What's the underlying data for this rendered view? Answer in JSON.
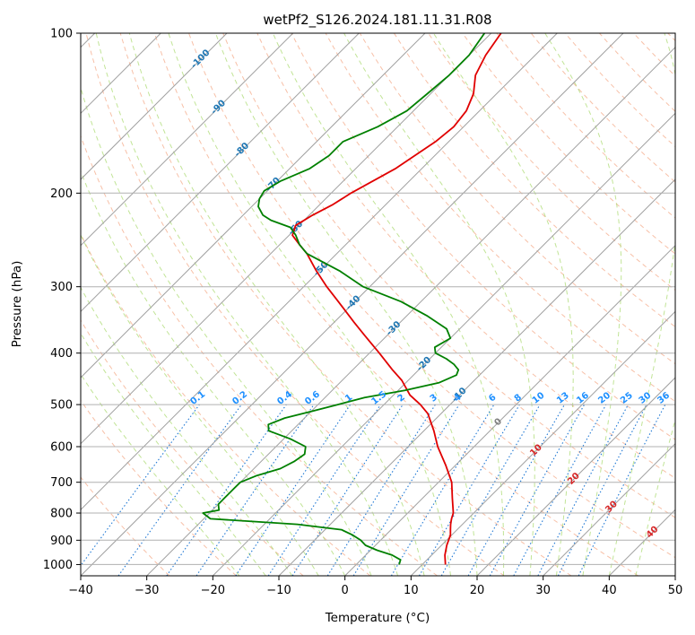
{
  "chart_data": {
    "type": "skew-t",
    "title": "wetPf2_S126.2024.181.11.31.R08",
    "xlabel": "Temperature (°C)",
    "ylabel": "Pressure (hPa)",
    "xlim": [
      -40,
      50
    ],
    "ylim": [
      1050,
      100
    ],
    "log_y": true,
    "grid": true,
    "x_ticks": [
      -40,
      -30,
      -20,
      -10,
      0,
      10,
      20,
      30,
      40,
      50
    ],
    "x_tick_labels": [
      "−40",
      "−30",
      "−20",
      "−10",
      "0",
      "10",
      "20",
      "30",
      "40",
      "50"
    ],
    "y_ticks": [
      100,
      200,
      300,
      400,
      500,
      600,
      700,
      800,
      900,
      1000
    ],
    "y_tick_labels": [
      "100",
      "200",
      "300",
      "400",
      "500",
      "600",
      "700",
      "800",
      "900",
      "1000"
    ],
    "isotherm_labels": [
      "-100",
      "-90",
      "-80",
      "-70",
      "-60",
      "-50",
      "-40",
      "-30",
      "-20",
      "-10",
      "0",
      "10",
      "20",
      "30",
      "40"
    ],
    "mixing_ratio_labels": [
      "0.1",
      "0.2",
      "0.4",
      "0.6",
      "1",
      "1.5",
      "2",
      "3",
      "4",
      "6",
      "8",
      "10",
      "13",
      "16",
      "20",
      "25",
      "30",
      "36"
    ],
    "mixing_ratio_values": [
      0.1,
      0.2,
      0.4,
      0.6,
      1,
      1.5,
      2,
      3,
      4,
      6,
      8,
      10,
      13,
      16,
      20,
      25,
      30,
      36
    ],
    "series": [
      {
        "color": "#e00000",
        "pressure": [
          1000,
          960,
          920,
          880,
          860,
          840,
          820,
          800,
          750,
          700,
          650,
          600,
          560,
          520,
          500,
          480,
          450,
          430,
          400,
          370,
          350,
          320,
          300,
          280,
          260,
          250,
          240,
          230,
          220,
          210,
          200,
          180,
          160,
          150,
          140,
          130,
          120,
          110,
          100
        ],
        "temperature": [
          13.5,
          12.0,
          10.8,
          9.8,
          9.0,
          8.2,
          7.5,
          6.9,
          4.5,
          2.0,
          -1.5,
          -5.5,
          -8.5,
          -12.0,
          -14.5,
          -17.5,
          -21.0,
          -24.0,
          -28.5,
          -33.5,
          -37.0,
          -42.5,
          -46.5,
          -50.5,
          -54.5,
          -57.0,
          -59.5,
          -60.5,
          -59.5,
          -58.0,
          -57.0,
          -54.0,
          -52.0,
          -51.5,
          -52.0,
          -53.5,
          -56.0,
          -57.5,
          -58.5
        ]
      },
      {
        "color": "#008000",
        "pressure": [
          1000,
          980,
          960,
          940,
          920,
          900,
          880,
          860,
          840,
          830,
          820,
          800,
          790,
          770,
          750,
          720,
          700,
          680,
          660,
          640,
          620,
          600,
          580,
          560,
          545,
          530,
          515,
          500,
          485,
          470,
          455,
          440,
          430,
          420,
          410,
          400,
          390,
          375,
          360,
          340,
          320,
          300,
          280,
          260,
          250,
          240,
          232,
          225,
          220,
          212,
          205,
          198,
          190,
          180,
          170,
          160,
          150,
          140,
          130,
          120,
          110,
          100
        ],
        "temperature": [
          6.5,
          6.0,
          4.0,
          1.0,
          -1.5,
          -3.0,
          -5.0,
          -7.5,
          -15.0,
          -22.0,
          -29.0,
          -31.0,
          -29.0,
          -30.0,
          -30.0,
          -30.0,
          -30.0,
          -28.5,
          -26.0,
          -25.0,
          -24.5,
          -25.5,
          -29.0,
          -33.5,
          -34.5,
          -33.0,
          -30.0,
          -27.0,
          -24.0,
          -19.0,
          -15.0,
          -13.5,
          -14.0,
          -15.5,
          -17.5,
          -20.0,
          -21.0,
          -20.0,
          -22.0,
          -27.0,
          -33.0,
          -41.0,
          -47.0,
          -54.5,
          -57.0,
          -59.0,
          -61.0,
          -65.0,
          -67.0,
          -69.0,
          -70.0,
          -70.5,
          -69.5,
          -67.0,
          -66.0,
          -66.0,
          -63.0,
          -61.0,
          -60.5,
          -60.0,
          -60.0,
          -61.0
        ]
      }
    ]
  }
}
